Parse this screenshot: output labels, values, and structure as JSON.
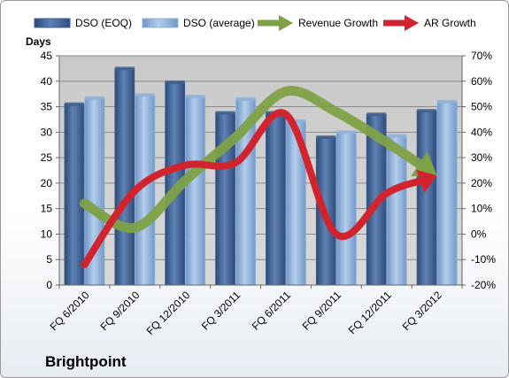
{
  "company": "Brightpoint",
  "chart_data": {
    "type": "bar",
    "categories": [
      "FQ 6/2010",
      "FQ 9/2010",
      "FQ 12/2010",
      "FQ 3/2011",
      "FQ 6/2011",
      "FQ 9/2011",
      "FQ 12/2011",
      "FQ 3/2012"
    ],
    "series": [
      {
        "name": "DSO (EOQ)",
        "type": "bar",
        "axis": "left",
        "color": "#3f5f8f",
        "values": [
          35.5,
          42.5,
          39.8,
          33.8,
          33.8,
          29.0,
          33.5,
          34.2
        ]
      },
      {
        "name": "DSO (average)",
        "type": "bar",
        "axis": "left",
        "color": "#8fb0d8",
        "values": [
          36.7,
          37.3,
          37.0,
          36.5,
          32.2,
          30.0,
          29.3,
          36.0
        ]
      },
      {
        "name": "Revenue Growth",
        "type": "line",
        "axis": "right",
        "color": "#7ea146",
        "values": [
          12,
          2.5,
          21,
          38,
          56,
          48,
          36,
          23
        ]
      },
      {
        "name": "AR Growth",
        "type": "line",
        "axis": "right",
        "color": "#d2242f",
        "values": [
          -12,
          17,
          27,
          28,
          47,
          0,
          16,
          23
        ]
      }
    ],
    "ylabel": "Days",
    "ylim": [
      0,
      45
    ],
    "yticks": [
      "0",
      "5",
      "10",
      "15",
      "20",
      "25",
      "30",
      "35",
      "40",
      "45"
    ],
    "y2lim": [
      -20,
      70
    ],
    "y2ticks": [
      "-20%",
      "-10%",
      "0%",
      "10%",
      "20%",
      "30%",
      "40%",
      "50%",
      "60%",
      "70%"
    ],
    "legend": "top",
    "grid": true
  }
}
